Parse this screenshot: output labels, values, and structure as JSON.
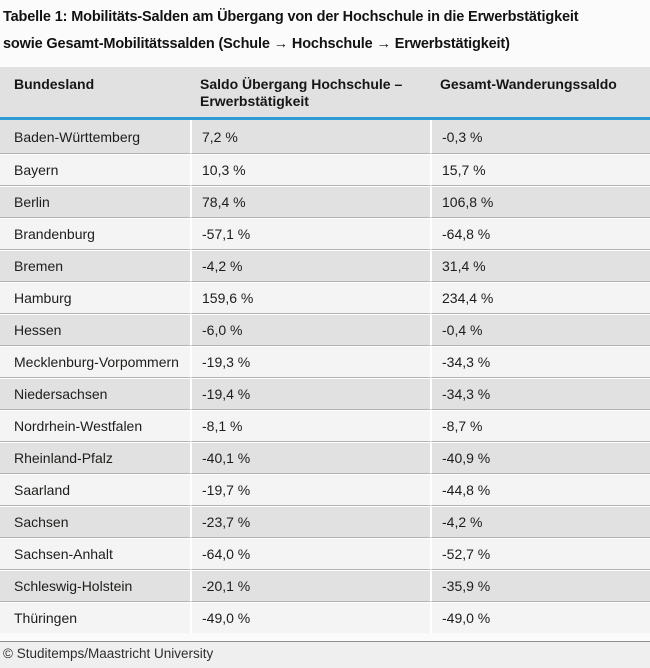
{
  "title": {
    "line1": "Tabelle 1: Mobilitäts-Salden am Übergang von der Hochschule in die Erwerbstätigkeit",
    "line2": "sowie Gesamt-Mobilitätssalden (Schule → Hochschule → Erwerbstätigkeit)"
  },
  "table": {
    "columns": [
      "Bundesland",
      "Saldo Übergang Hochschule – Erwerbstätigkeit",
      "Gesamt-Wanderungssaldo"
    ],
    "rows": [
      {
        "bundesland": "Baden-Württemberg",
        "saldo": "7,2 %",
        "gesamt": "-0,3 %"
      },
      {
        "bundesland": "Bayern",
        "saldo": "10,3 %",
        "gesamt": "15,7 %"
      },
      {
        "bundesland": "Berlin",
        "saldo": "78,4 %",
        "gesamt": "106,8 %"
      },
      {
        "bundesland": "Brandenburg",
        "saldo": "-57,1 %",
        "gesamt": "-64,8 %"
      },
      {
        "bundesland": "Bremen",
        "saldo": "-4,2 %",
        "gesamt": "31,4 %"
      },
      {
        "bundesland": "Hamburg",
        "saldo": "159,6 %",
        "gesamt": "234,4 %"
      },
      {
        "bundesland": "Hessen",
        "saldo": "-6,0 %",
        "gesamt": "-0,4 %"
      },
      {
        "bundesland": "Mecklenburg-Vorpommern",
        "saldo": "-19,3 %",
        "gesamt": "-34,3 %"
      },
      {
        "bundesland": "Niedersachsen",
        "saldo": "-19,4 %",
        "gesamt": "-34,3 %"
      },
      {
        "bundesland": "Nordrhein-Westfalen",
        "saldo": "-8,1 %",
        "gesamt": "-8,7 %"
      },
      {
        "bundesland": "Rheinland-Pfalz",
        "saldo": "-40,1 %",
        "gesamt": "-40,9 %"
      },
      {
        "bundesland": "Saarland",
        "saldo": "-19,7 %",
        "gesamt": "-44,8 %"
      },
      {
        "bundesland": "Sachsen",
        "saldo": "-23,7 %",
        "gesamt": "-4,2 %"
      },
      {
        "bundesland": "Sachsen-Anhalt",
        "saldo": "-64,0 %",
        "gesamt": "-52,7 %"
      },
      {
        "bundesland": "Schleswig-Holstein",
        "saldo": "-20,1 %",
        "gesamt": "-35,9 %"
      },
      {
        "bundesland": "Thüringen",
        "saldo": "-49,0 %",
        "gesamt": "-49,0 %"
      }
    ]
  },
  "footer": {
    "copyright": "© Studitemps/Maastricht University"
  },
  "colors": {
    "accent_blue": "#2f9cd6",
    "row_dark": "#e1e1e1",
    "row_light": "#f4f4f4",
    "separator_gray": "#b3b3b3",
    "footer_rule": "#8f8f8f"
  }
}
